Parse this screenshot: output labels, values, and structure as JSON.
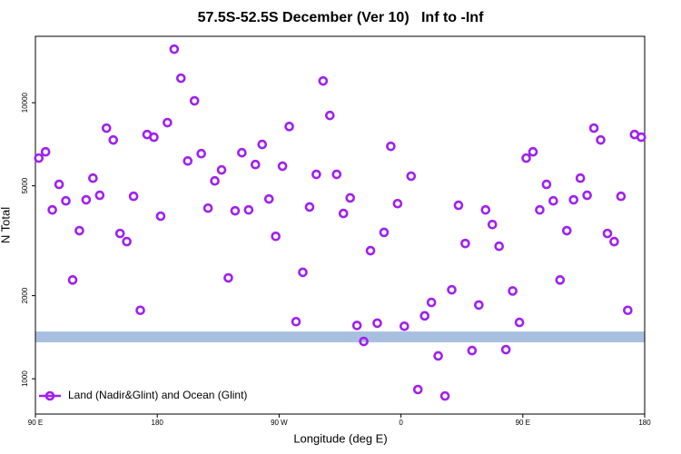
{
  "chart_data": {
    "type": "scatter",
    "title": "57.5S-52.5S December (Ver 10)   Inf to -Inf",
    "x_label": "Longitude (deg E)",
    "y_label": "N Total",
    "xlim": [
      90,
      540
    ],
    "xticks": [
      {
        "value": 90,
        "label": "90 E"
      },
      180,
      {
        "value": 270,
        "label": "90 W"
      },
      {
        "value": 360,
        "label": "0"
      },
      {
        "value": 450,
        "label": "90 E"
      },
      {
        "value": 540,
        "label": "180"
      }
    ],
    "ylim": [
      745,
      17400
    ],
    "log_y": true,
    "yticks": [
      1000,
      2000,
      5000,
      10000
    ],
    "legend": "lower left",
    "band": {
      "values": [
        1355,
        1483
      ],
      "color": "#a9bfe0"
    },
    "x": [
      92.5,
      97.5,
      102.5,
      107.5,
      112.5,
      117.5,
      122.5,
      127.5,
      132.5,
      137.5,
      142.5,
      147.5,
      152.5,
      157.5,
      162.5,
      167.5,
      172.5,
      177.5,
      182.5,
      187.5,
      192.5,
      197.5,
      202.5,
      207.5,
      212.5,
      217.5,
      222.5,
      227.5,
      232.5,
      237.5,
      242.5,
      247.5,
      252.5,
      257.5,
      262.5,
      267.5,
      272.5,
      277.5,
      282.5,
      287.5,
      292.5,
      297.5,
      302.5,
      307.5,
      312.5,
      317.5,
      322.5,
      327.5,
      332.5,
      337.5,
      342.5,
      347.5,
      352.5,
      357.5,
      362.5,
      367.5,
      372.5,
      377.5,
      382.5,
      387.5,
      392.5,
      397.5,
      402.5,
      407.5,
      412.5,
      417.5,
      422.5,
      427.5,
      432.5,
      437.5,
      442.5,
      447.5,
      452.5,
      457.5,
      462.5,
      467.5,
      472.5,
      477.5,
      482.5,
      487.5,
      492.5,
      497.5,
      502.5,
      507.5,
      512.5,
      517.5,
      522.5,
      527.5,
      532.5,
      537.5
    ],
    "series": [
      {
        "name": "Land (Nadir&Glint) and Ocean (Glint)",
        "color": "#a020f0",
        "values": [
          6300,
          6640,
          4090,
          5060,
          4410,
          2280,
          3440,
          4450,
          5330,
          4620,
          8090,
          7330,
          3360,
          3140,
          4580,
          1770,
          7670,
          7500,
          3880,
          8470,
          15630,
          12270,
          6150,
          10160,
          6540,
          4150,
          5210,
          5710,
          2320,
          4060,
          6590,
          4090,
          5970,
          7060,
          4480,
          3280,
          5890,
          8200,
          1610,
          2430,
          4190,
          5500,
          11990,
          8990,
          5500,
          3970,
          4520,
          1560,
          1365,
          2910,
          1590,
          3390,
          6950,
          4310,
          1550,
          5420,
          914,
          1690,
          1890,
          1210,
          866,
          2100,
          4250,
          3090,
          1265,
          1850,
          4090,
          3620,
          3020,
          1275,
          2080,
          1600,
          6300,
          6640,
          4090,
          5060,
          4410,
          2280,
          3440,
          4450,
          5330,
          4620,
          8090,
          7330,
          3360,
          3140,
          4580,
          1770,
          7670,
          7500
        ]
      }
    ]
  }
}
